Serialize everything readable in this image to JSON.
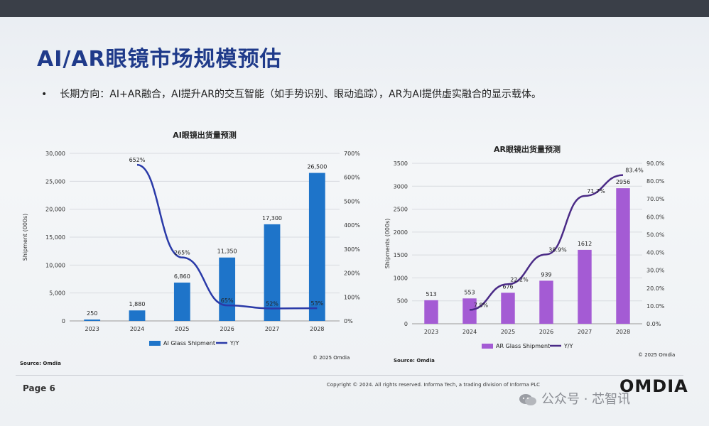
{
  "slide": {
    "title": "AI/AR眼镜市场规模预估",
    "bullet": "长期方向：AI+AR融合，AI提升AR的交互智能（如手势识别、眼动追踪），AR为AI提供虚实融合的显示载体。",
    "page": "Page 6",
    "copyright": "Copyright © 2024. All rights reserved. Informa Tech, a trading division of Informa PLC",
    "logo": "OMDIA",
    "watermark": "公众号 · 芯智讯"
  },
  "chart_data": [
    {
      "type": "bar",
      "title": "AI眼镜出货量预测",
      "categories": [
        "2023",
        "2024",
        "2025",
        "2026",
        "2027",
        "2028"
      ],
      "series": [
        {
          "name": "AI Glass Shipment",
          "values": [
            250,
            1880,
            6860,
            11350,
            17300,
            26500
          ],
          "labels": [
            "250",
            "1,880",
            "6,860",
            "11,350",
            "17,300",
            "26,500"
          ],
          "color": "#1e74c9"
        },
        {
          "name": "Y/Y",
          "type": "line",
          "axis": "right",
          "values": [
            null,
            652,
            265,
            65,
            52,
            53
          ],
          "labels": [
            "",
            "652%",
            "265%",
            "65%",
            "52%",
            "53%"
          ],
          "color": "#2a3aa8"
        }
      ],
      "ylabel": "Shipment (000s)",
      "ylim": [
        0,
        30000
      ],
      "yticks": [
        "0",
        "5,000",
        "10,000",
        "15,000",
        "20,000",
        "25,000",
        "30,000"
      ],
      "y2lim": [
        0,
        700
      ],
      "y2ticks": [
        "0%",
        "100%",
        "200%",
        "300%",
        "400%",
        "500%",
        "600%",
        "700%"
      ],
      "source": "Source: Omdia",
      "credit": "© 2025 Omdia"
    },
    {
      "type": "bar",
      "title": "AR眼镜出货量预测",
      "categories": [
        "2023",
        "2024",
        "2025",
        "2026",
        "2027",
        "2028"
      ],
      "series": [
        {
          "name": "AR Glass Shipment",
          "values": [
            513,
            553,
            676,
            939,
            1612,
            2956
          ],
          "labels": [
            "513",
            "553",
            "676",
            "939",
            "1612",
            "2956"
          ],
          "color": "#a45bd4"
        },
        {
          "name": "Y/Y",
          "type": "line",
          "axis": "right",
          "values": [
            null,
            7.8,
            22.2,
            38.9,
            71.7,
            83.4
          ],
          "labels": [
            "",
            "7.8%",
            "22.2%",
            "38.9%",
            "71.7%",
            "83.4%"
          ],
          "color": "#4a2a86"
        }
      ],
      "ylabel": "Shipments (000s)",
      "ylim": [
        0,
        3500
      ],
      "yticks": [
        "0",
        "500",
        "1000",
        "1500",
        "2000",
        "2500",
        "3000",
        "3500"
      ],
      "y2lim": [
        0,
        90
      ],
      "y2ticks": [
        "0.0%",
        "10.0%",
        "20.0%",
        "30.0%",
        "40.0%",
        "50.0%",
        "60.0%",
        "70.0%",
        "80.0%",
        "90.0%"
      ],
      "source": "Source: Omdia",
      "credit": "© 2025 Omdia"
    }
  ]
}
